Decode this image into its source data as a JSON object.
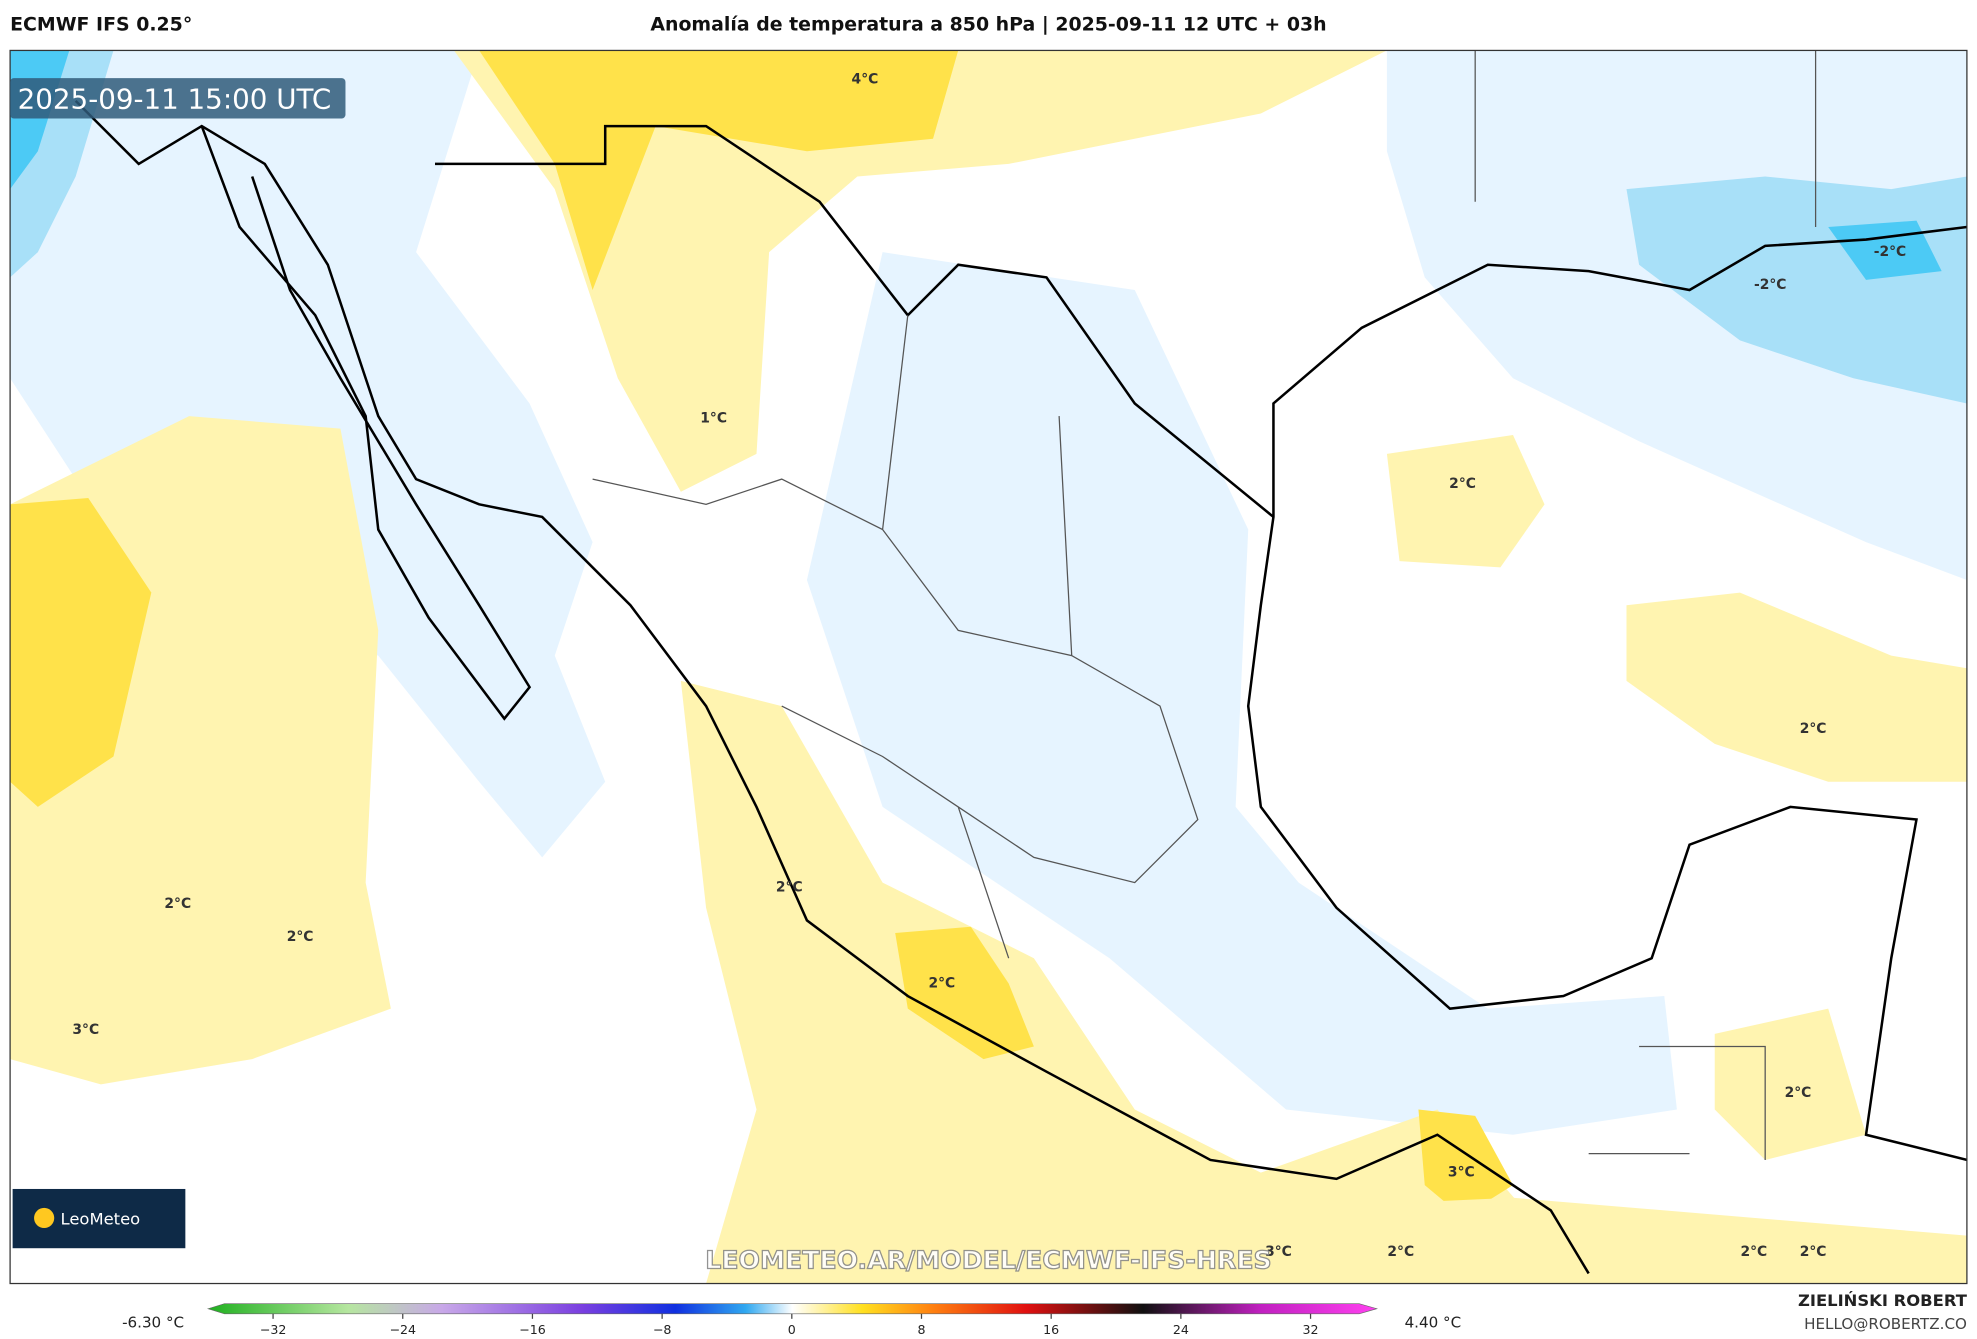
{
  "header": {
    "model": "ECMWF IFS 0.25°",
    "title": "Anomalía de temperatura a 850 hPa | 2025-09-11 12 UTC + 03h"
  },
  "map": {
    "timestamp": "2025-09-11 15:00 UTC",
    "contour_labels": [
      "4°C",
      "1°C",
      "2°C",
      "-2°C",
      "-2°C",
      "2°C",
      "2°C",
      "2°C",
      "3°C",
      "2°C",
      "2°C",
      "2°C",
      "3°C",
      "3°C",
      "2°C",
      "2°C",
      "2°C"
    ],
    "logo": "LeoMeteo",
    "watermark": "LEOMETEO.AR/MODEL/ECMWF-IFS-HRES"
  },
  "colorbar": {
    "min_label": "-6.30 °C",
    "max_label": "4.40 °C",
    "lim": [
      -35,
      35
    ],
    "ticks": [
      {
        "value": -32,
        "label": "−32"
      },
      {
        "value": -24,
        "label": "−24"
      },
      {
        "value": -16,
        "label": "−16"
      },
      {
        "value": -8,
        "label": "−8"
      },
      0,
      8,
      16,
      24,
      32
    ]
  },
  "credit": {
    "author": "ZIELIŃSKI ROBERT",
    "email": "HELLO@ROBERTZ.CO"
  }
}
